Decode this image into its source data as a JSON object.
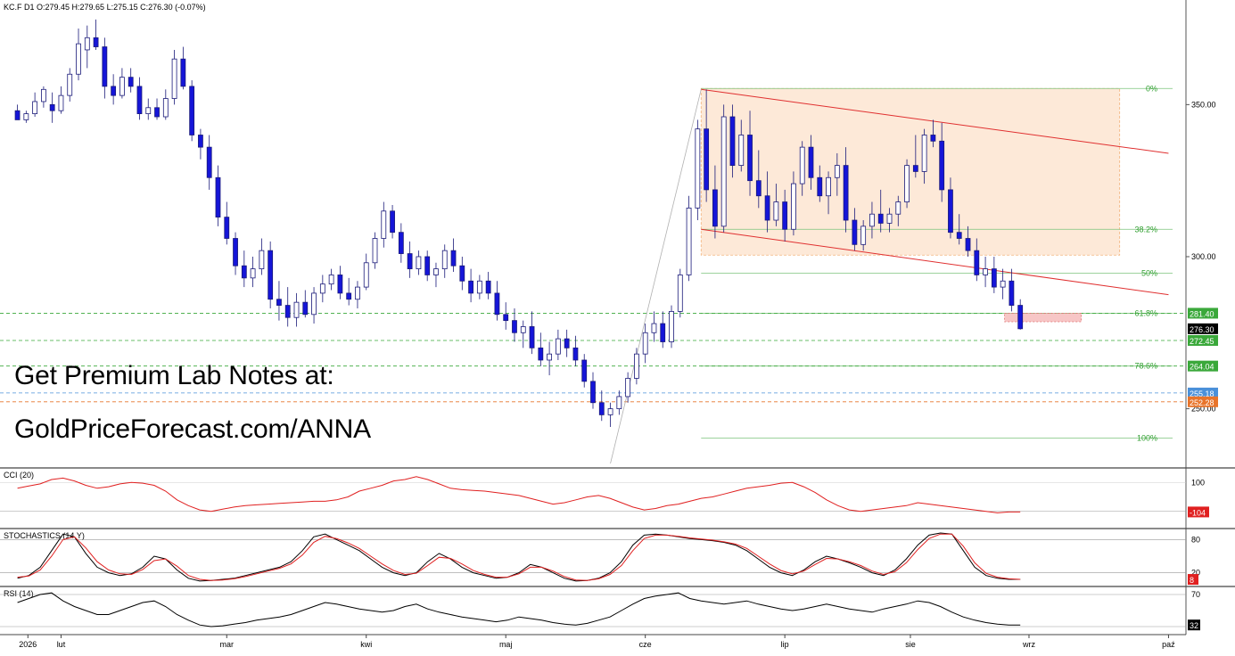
{
  "header": {
    "symbol": "KC.F",
    "timeframe": "D1",
    "ohlc": "O:279.45   H:279.65   L:275.15   C:276.30   (-0.07%)"
  },
  "promo": {
    "line1": "Get Premium Lab Notes at:",
    "line2": "GoldPriceForecast.com/ANNA"
  },
  "chart_data": {
    "type": "candlestick",
    "symbol": "KC.F",
    "timeframe": "D1",
    "last": {
      "open": 279.45,
      "high": 279.65,
      "low": 275.15,
      "close": 276.3,
      "change": "-0.07%"
    },
    "x_months": [
      "2026",
      "lut",
      "mar",
      "kwi",
      "maj",
      "cze",
      "lip",
      "sie",
      "wrz",
      "paź"
    ],
    "y_ticks": [
      250,
      300,
      350
    ],
    "y_tick_labels": [
      "250.00",
      "300.00",
      "350.00"
    ],
    "ylim": [
      232,
      380
    ],
    "colors": {
      "up": "#ffffff",
      "down": "#1515d8",
      "grid": "#bdbdbd",
      "fib": "#2e9e2e",
      "channel": "#e03030",
      "box": "#f6c9a0"
    },
    "price_levels": [
      {
        "label": "281.40",
        "value": 281.4,
        "color": "#3aa83a"
      },
      {
        "label": "276.30",
        "value": 276.3,
        "color": "#000000"
      },
      {
        "label": "272.45",
        "value": 272.45,
        "color": "#3aa83a"
      },
      {
        "label": "264.04",
        "value": 264.04,
        "color": "#3aa83a"
      },
      {
        "label": "255.18",
        "value": 255.18,
        "color": "#4a90d9"
      },
      {
        "label": "252.28",
        "value": 252.28,
        "color": "#e8742a"
      }
    ],
    "fibonacci": [
      {
        "label": "0%",
        "value": 355.3
      },
      {
        "label": "38.2%",
        "value": 309.0
      },
      {
        "label": "50%",
        "value": 294.6
      },
      {
        "label": "61.8%",
        "value": 281.4
      },
      {
        "label": "78.6%",
        "value": 264.04
      },
      {
        "label": "100%",
        "value": 240.4
      }
    ],
    "candles": [
      [
        0,
        348,
        350,
        346,
        345
      ],
      [
        0.25,
        345,
        348,
        344,
        347
      ],
      [
        0.5,
        347,
        354,
        346,
        351
      ],
      [
        0.75,
        351,
        356,
        349,
        355
      ],
      [
        1.0,
        350,
        354,
        344,
        348
      ],
      [
        1.25,
        348,
        356,
        347,
        353
      ],
      [
        1.5,
        353,
        362,
        351,
        360
      ],
      [
        1.75,
        360,
        375,
        358,
        370
      ],
      [
        2.0,
        368,
        376,
        362,
        372
      ],
      [
        2.25,
        372,
        378,
        368,
        369
      ],
      [
        2.5,
        369,
        372,
        352,
        356
      ],
      [
        2.75,
        356,
        360,
        350,
        353
      ],
      [
        3.0,
        353,
        362,
        352,
        359
      ],
      [
        3.25,
        359,
        362,
        354,
        356
      ],
      [
        3.5,
        356,
        359,
        345,
        347
      ],
      [
        3.75,
        347,
        352,
        345,
        349
      ],
      [
        4.0,
        349,
        352,
        345,
        346
      ],
      [
        4.25,
        346,
        355,
        345,
        352
      ],
      [
        4.5,
        352,
        368,
        350,
        365
      ],
      [
        4.75,
        365,
        369,
        355,
        356
      ],
      [
        5.0,
        356,
        358,
        338,
        340
      ],
      [
        5.25,
        340,
        342,
        332,
        336
      ],
      [
        5.5,
        336,
        340,
        322,
        326
      ],
      [
        5.75,
        326,
        330,
        310,
        313
      ],
      [
        6.0,
        313,
        318,
        304,
        306
      ],
      [
        6.25,
        306,
        308,
        294,
        297
      ],
      [
        6.5,
        297,
        302,
        290,
        293
      ],
      [
        6.75,
        293,
        300,
        290,
        296
      ],
      [
        7.0,
        296,
        306,
        294,
        302
      ],
      [
        7.25,
        302,
        305,
        283,
        286
      ],
      [
        7.5,
        286,
        292,
        279,
        284
      ],
      [
        7.75,
        284,
        290,
        277,
        280
      ],
      [
        8.0,
        280,
        288,
        277,
        285
      ],
      [
        8.25,
        285,
        289,
        280,
        281
      ],
      [
        8.5,
        281,
        290,
        278,
        288
      ],
      [
        8.75,
        288,
        294,
        285,
        291
      ],
      [
        9.0,
        291,
        296,
        289,
        294
      ],
      [
        9.25,
        294,
        297,
        286,
        288
      ],
      [
        9.5,
        288,
        293,
        284,
        286
      ],
      [
        9.75,
        286,
        292,
        283,
        290
      ],
      [
        10.0,
        290,
        301,
        289,
        298
      ],
      [
        10.25,
        298,
        308,
        296,
        306
      ],
      [
        10.5,
        306,
        318,
        303,
        315
      ],
      [
        10.75,
        315,
        317,
        306,
        308
      ],
      [
        11.0,
        308,
        311,
        298,
        301
      ],
      [
        11.25,
        301,
        305,
        293,
        296
      ],
      [
        11.5,
        296,
        302,
        294,
        300
      ],
      [
        11.75,
        300,
        302,
        292,
        294
      ],
      [
        12.0,
        294,
        298,
        290,
        296
      ],
      [
        12.25,
        296,
        304,
        293,
        302
      ],
      [
        12.5,
        302,
        306,
        295,
        297
      ],
      [
        12.75,
        297,
        300,
        289,
        292
      ],
      [
        13.0,
        292,
        296,
        285,
        288
      ],
      [
        13.25,
        288,
        294,
        286,
        292
      ],
      [
        13.5,
        292,
        295,
        286,
        288
      ],
      [
        13.75,
        288,
        292,
        279,
        281
      ],
      [
        14.0,
        281,
        285,
        276,
        279
      ],
      [
        14.25,
        279,
        283,
        272,
        275
      ],
      [
        14.5,
        275,
        279,
        270,
        277
      ],
      [
        14.75,
        277,
        282,
        268,
        270
      ],
      [
        15.0,
        270,
        275,
        264,
        266
      ],
      [
        15.25,
        266,
        272,
        261,
        268
      ],
      [
        15.5,
        268,
        276,
        266,
        273
      ],
      [
        15.75,
        273,
        276,
        267,
        270
      ],
      [
        16.0,
        270,
        274,
        264,
        266
      ],
      [
        16.25,
        266,
        268,
        257,
        259
      ],
      [
        16.5,
        259,
        262,
        250,
        252
      ],
      [
        16.75,
        252,
        256,
        246,
        248
      ],
      [
        17.0,
        248,
        252,
        244,
        250
      ],
      [
        17.25,
        250,
        256,
        248,
        254
      ],
      [
        17.5,
        254,
        262,
        252,
        260
      ],
      [
        17.75,
        260,
        270,
        258,
        268
      ],
      [
        18.0,
        268,
        278,
        265,
        275
      ],
      [
        18.25,
        275,
        282,
        272,
        278
      ],
      [
        18.5,
        278,
        282,
        270,
        272
      ],
      [
        18.75,
        272,
        284,
        270,
        282
      ],
      [
        19.0,
        282,
        296,
        280,
        294
      ],
      [
        19.25,
        294,
        320,
        292,
        316
      ],
      [
        19.5,
        316,
        345,
        312,
        342
      ],
      [
        19.75,
        342,
        355,
        318,
        322
      ],
      [
        20.0,
        322,
        330,
        306,
        310
      ],
      [
        20.25,
        310,
        350,
        308,
        346
      ],
      [
        20.5,
        346,
        350,
        326,
        330
      ],
      [
        20.75,
        330,
        345,
        328,
        340
      ],
      [
        21.0,
        340,
        348,
        320,
        325
      ],
      [
        21.25,
        325,
        335,
        316,
        320
      ],
      [
        21.5,
        320,
        328,
        308,
        312
      ],
      [
        21.75,
        312,
        324,
        310,
        318
      ],
      [
        22.0,
        318,
        322,
        305,
        309
      ],
      [
        22.25,
        309,
        328,
        307,
        324
      ],
      [
        22.5,
        324,
        338,
        320,
        336
      ],
      [
        22.75,
        336,
        340,
        322,
        326
      ],
      [
        23.0,
        326,
        330,
        318,
        320
      ],
      [
        23.25,
        320,
        328,
        314,
        326
      ],
      [
        23.5,
        326,
        334,
        320,
        330
      ],
      [
        23.75,
        330,
        336,
        308,
        312
      ],
      [
        24.0,
        312,
        316,
        302,
        304
      ],
      [
        24.25,
        304,
        312,
        302,
        310
      ],
      [
        24.5,
        310,
        318,
        306,
        314
      ],
      [
        24.75,
        314,
        322,
        308,
        311
      ],
      [
        25.0,
        311,
        316,
        308,
        314
      ],
      [
        25.25,
        314,
        320,
        310,
        318
      ],
      [
        25.5,
        318,
        332,
        316,
        330
      ],
      [
        25.75,
        330,
        340,
        326,
        328
      ],
      [
        26.0,
        328,
        342,
        324,
        340
      ],
      [
        26.25,
        340,
        345,
        336,
        338
      ],
      [
        26.5,
        338,
        344,
        318,
        322
      ],
      [
        26.75,
        322,
        326,
        306,
        308
      ],
      [
        27.0,
        308,
        314,
        304,
        306
      ],
      [
        27.25,
        306,
        310,
        300,
        302
      ],
      [
        27.5,
        302,
        306,
        292,
        294
      ],
      [
        27.75,
        294,
        300,
        290,
        296
      ],
      [
        28.0,
        296,
        300,
        288,
        290
      ],
      [
        28.25,
        290,
        296,
        286,
        292
      ],
      [
        28.5,
        292,
        296,
        282,
        284
      ],
      [
        28.75,
        284,
        286,
        276,
        276.3
      ]
    ],
    "cci": {
      "label": "CCI (20)",
      "ticks": [
        100
      ],
      "current": "-104",
      "values": [
        60,
        75,
        90,
        120,
        130,
        110,
        80,
        60,
        70,
        90,
        100,
        95,
        80,
        40,
        -20,
        -60,
        -90,
        -100,
        -85,
        -70,
        -60,
        -55,
        -50,
        -45,
        -40,
        -35,
        -30,
        -30,
        -20,
        0,
        40,
        60,
        80,
        110,
        120,
        140,
        120,
        90,
        60,
        50,
        45,
        40,
        30,
        20,
        10,
        -10,
        -30,
        -50,
        -40,
        -20,
        0,
        10,
        -10,
        -40,
        -70,
        -90,
        -80,
        -60,
        -50,
        -30,
        -10,
        0,
        20,
        40,
        60,
        70,
        80,
        95,
        100,
        70,
        30,
        -20,
        -60,
        -90,
        -100,
        -90,
        -80,
        -70,
        -60,
        -40,
        -50,
        -60,
        -70,
        -80,
        -90,
        -100,
        -110,
        -104,
        -104
      ]
    },
    "stochastics": {
      "label": "STOCHASTICS (14,Y)",
      "ticks": [
        80,
        20
      ],
      "current": "8",
      "k": [
        10,
        15,
        30,
        60,
        90,
        85,
        55,
        30,
        20,
        15,
        18,
        30,
        50,
        45,
        25,
        10,
        5,
        6,
        8,
        10,
        15,
        20,
        25,
        30,
        40,
        60,
        85,
        90,
        80,
        70,
        60,
        45,
        30,
        20,
        15,
        20,
        40,
        55,
        45,
        30,
        20,
        15,
        10,
        12,
        20,
        35,
        30,
        20,
        10,
        5,
        6,
        10,
        20,
        40,
        70,
        88,
        90,
        88,
        85,
        82,
        80,
        78,
        75,
        70,
        60,
        45,
        30,
        20,
        15,
        25,
        40,
        50,
        45,
        38,
        30,
        20,
        15,
        25,
        45,
        70,
        88,
        92,
        90,
        60,
        30,
        15,
        10,
        8,
        8
      ],
      "d": [
        12,
        14,
        25,
        50,
        80,
        85,
        65,
        40,
        25,
        18,
        17,
        26,
        42,
        45,
        32,
        15,
        8,
        6,
        7,
        9,
        13,
        18,
        23,
        28,
        36,
        52,
        75,
        86,
        82,
        74,
        64,
        50,
        36,
        24,
        17,
        19,
        33,
        48,
        46,
        36,
        24,
        17,
        12,
        12,
        18,
        30,
        30,
        23,
        13,
        7,
        6,
        9,
        17,
        33,
        60,
        82,
        88,
        88,
        86,
        83,
        81,
        79,
        76,
        72,
        64,
        50,
        36,
        24,
        18,
        23,
        35,
        46,
        45,
        40,
        33,
        23,
        17,
        22,
        38,
        62,
        82,
        90,
        90,
        68,
        38,
        19,
        12,
        9,
        8
      ]
    },
    "rsi": {
      "label": "RSI (14)",
      "ticks": [
        70,
        30
      ],
      "current": "32",
      "values": [
        60,
        65,
        70,
        72,
        62,
        55,
        50,
        45,
        45,
        50,
        55,
        60,
        62,
        55,
        45,
        38,
        32,
        30,
        31,
        33,
        35,
        38,
        40,
        42,
        45,
        50,
        55,
        60,
        58,
        55,
        52,
        50,
        48,
        50,
        55,
        58,
        52,
        48,
        45,
        42,
        40,
        38,
        36,
        38,
        42,
        40,
        38,
        35,
        33,
        32,
        34,
        38,
        42,
        50,
        58,
        65,
        68,
        70,
        72,
        65,
        62,
        60,
        58,
        60,
        62,
        58,
        55,
        52,
        50,
        52,
        55,
        58,
        55,
        52,
        50,
        48,
        52,
        55,
        58,
        62,
        60,
        55,
        48,
        42,
        38,
        35,
        33,
        32,
        32
      ]
    },
    "x_range": [
      -0.5,
      33.5
    ]
  }
}
